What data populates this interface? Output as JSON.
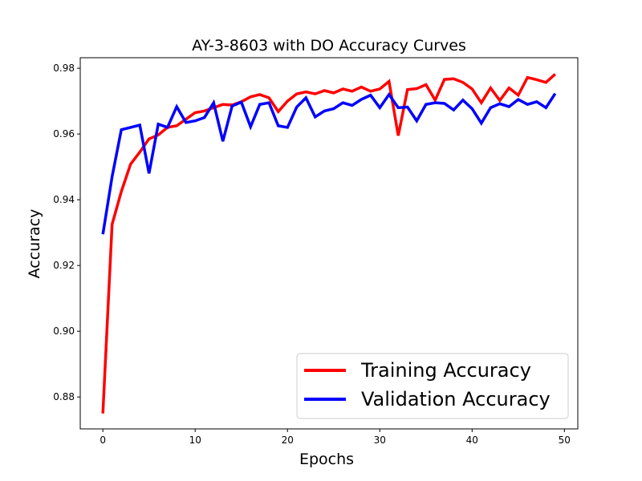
{
  "chart_data": {
    "type": "line",
    "title": "AY-3-8603 with DO Accuracy Curves",
    "xlabel": "Epochs",
    "ylabel": "Accuracy",
    "xlim": [
      -2.45,
      51.45
    ],
    "ylim": [
      0.8703,
      0.9832
    ],
    "xticks": [
      0,
      10,
      20,
      30,
      40,
      50
    ],
    "yticks": [
      0.88,
      0.9,
      0.92,
      0.94,
      0.96,
      0.98
    ],
    "ytick_labels": [
      "0.88",
      "0.90",
      "0.92",
      "0.94",
      "0.96",
      "0.98"
    ],
    "grid": false,
    "legend_position": "lower-right",
    "x": [
      0,
      1,
      2,
      3,
      4,
      5,
      6,
      7,
      8,
      9,
      10,
      11,
      12,
      13,
      14,
      15,
      16,
      17,
      18,
      19,
      20,
      21,
      22,
      23,
      24,
      25,
      26,
      27,
      28,
      29,
      30,
      31,
      32,
      33,
      34,
      35,
      36,
      37,
      38,
      39,
      40,
      41,
      42,
      43,
      44,
      45,
      46,
      47,
      48,
      49
    ],
    "series": [
      {
        "name": "Training Accuracy",
        "color": "#ff0000",
        "values": [
          0.875,
          0.9325,
          0.9425,
          0.9508,
          0.9545,
          0.9585,
          0.9597,
          0.962,
          0.9625,
          0.9645,
          0.9665,
          0.967,
          0.968,
          0.969,
          0.9688,
          0.9698,
          0.9713,
          0.972,
          0.971,
          0.9668,
          0.97,
          0.9722,
          0.9728,
          0.9722,
          0.9732,
          0.9725,
          0.9737,
          0.973,
          0.9743,
          0.973,
          0.9737,
          0.976,
          0.9595,
          0.9735,
          0.9738,
          0.975,
          0.9703,
          0.9766,
          0.9768,
          0.9757,
          0.9737,
          0.9695,
          0.974,
          0.9702,
          0.974,
          0.9718,
          0.9772,
          0.9765,
          0.9757,
          0.9782
        ]
      },
      {
        "name": "Validation Accuracy",
        "color": "#0000ff",
        "values": [
          0.9295,
          0.947,
          0.9613,
          0.962,
          0.9627,
          0.948,
          0.963,
          0.962,
          0.9683,
          0.9635,
          0.964,
          0.965,
          0.9695,
          0.9578,
          0.9685,
          0.9697,
          0.9622,
          0.969,
          0.9695,
          0.9625,
          0.962,
          0.9682,
          0.971,
          0.9652,
          0.967,
          0.9677,
          0.9695,
          0.9687,
          0.9705,
          0.9718,
          0.968,
          0.972,
          0.968,
          0.9682,
          0.964,
          0.969,
          0.9695,
          0.9693,
          0.9673,
          0.9703,
          0.9677,
          0.9633,
          0.968,
          0.9692,
          0.9683,
          0.9705,
          0.969,
          0.9698,
          0.968,
          0.9723
        ]
      }
    ]
  }
}
